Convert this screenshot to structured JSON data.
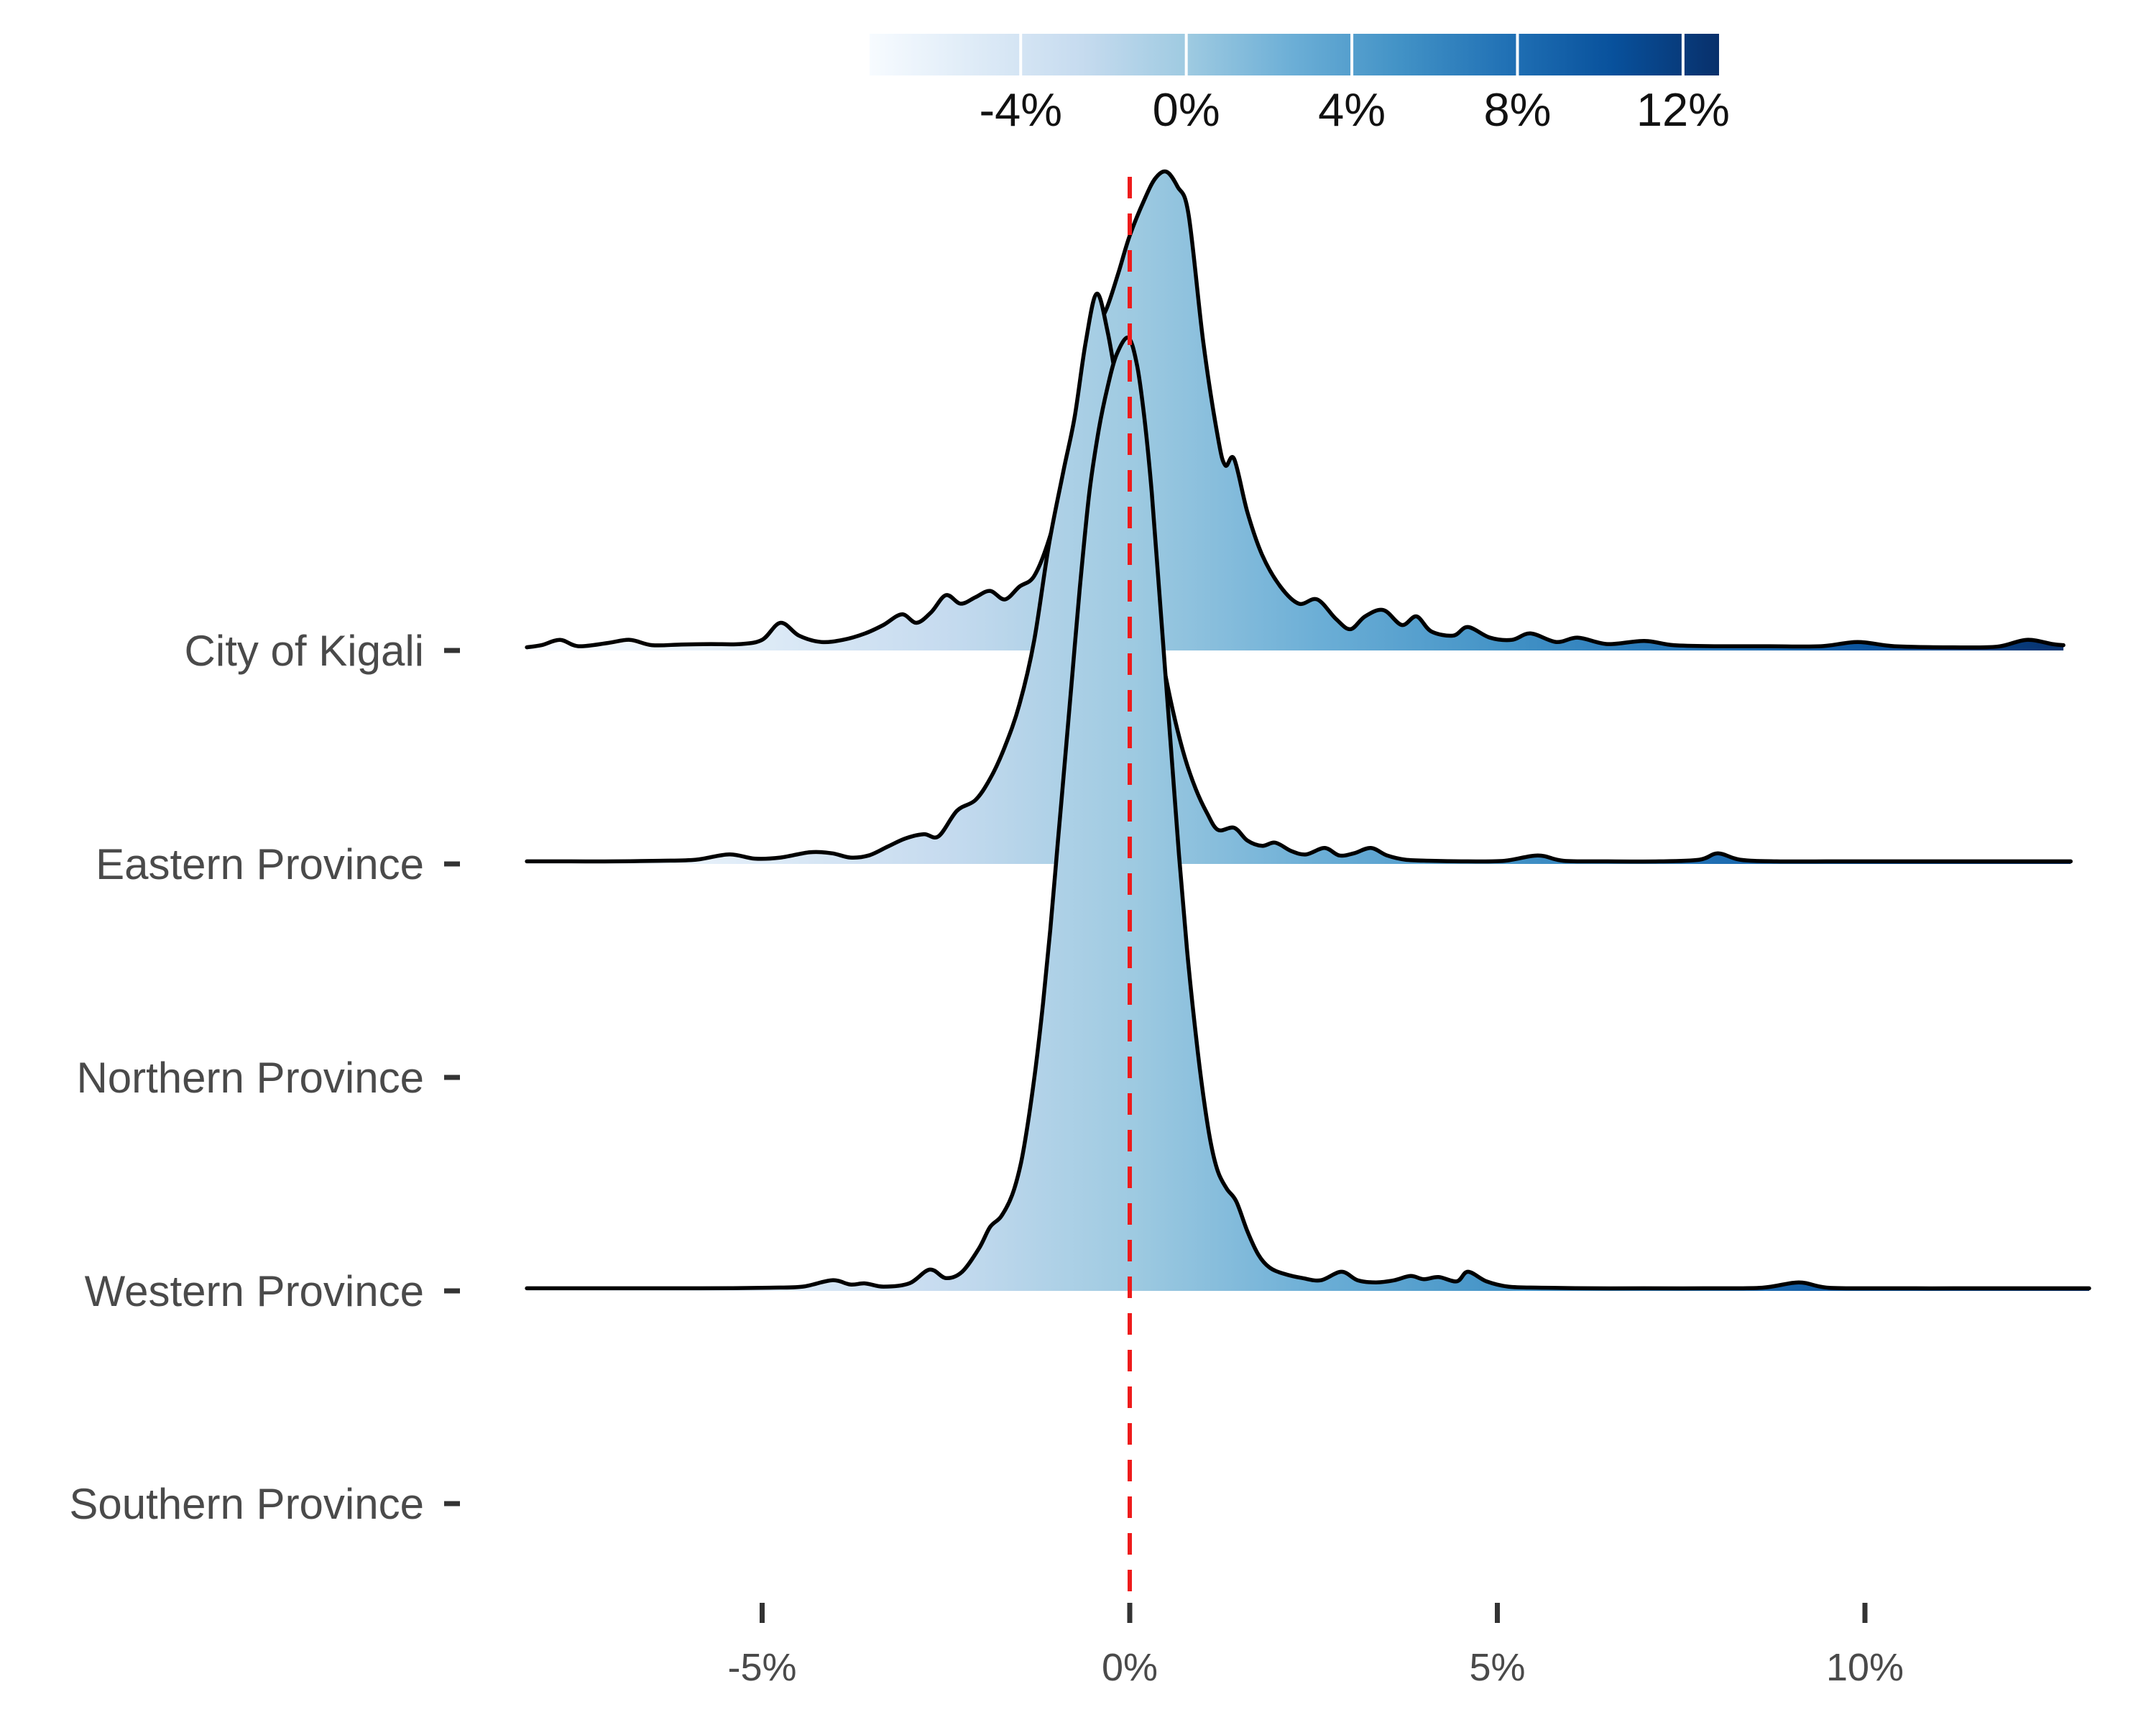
{
  "figure": {
    "background": "#ffffff",
    "outline_color": "#000000",
    "axis_text_color": "#4a4a4a",
    "legend_text_color": "#111111",
    "tick_color": "#333333"
  },
  "chart_data": {
    "type": "ridgeline",
    "title": "",
    "xlabel": "",
    "ylabel": "",
    "categories": [
      "City of Kigali",
      "Eastern Province",
      "Northern Province",
      "Western Province",
      "Southern Province"
    ],
    "x_axis": {
      "unit": "%",
      "ticks": [
        -5,
        0,
        5,
        10
      ],
      "tick_labels": [
        "-5%",
        "0%",
        "5%",
        "10%"
      ],
      "range_pct": [
        -8.2,
        13.1
      ]
    },
    "reference_line": {
      "value_pct": 0,
      "style": "dashed",
      "color": "#ee1b1b",
      "dash": [
        30,
        21
      ]
    },
    "colorbar": {
      "ticks": [
        -4,
        0,
        4,
        8,
        12
      ],
      "tick_labels": [
        "-4%",
        "0%",
        "4%",
        "8%",
        "12%"
      ],
      "range_pct": [
        -7.65,
        12.87
      ],
      "palette": [
        "#f7fbff",
        "#deebf7",
        "#c6dbef",
        "#9ecae1",
        "#6baed6",
        "#4292c6",
        "#2171b5",
        "#08519c",
        "#08306b"
      ],
      "tick_mark_color": "#ffffff"
    },
    "height_units": "fraction of row spacing above each category baseline",
    "series": [
      {
        "name": "City of Kigali",
        "has_density": true,
        "peak_pct": 0.5,
        "points": [
          [
            -8.2,
            0.015
          ],
          [
            -8.0,
            0.025
          ],
          [
            -7.75,
            0.05
          ],
          [
            -7.5,
            0.02
          ],
          [
            -7.1,
            0.035
          ],
          [
            -6.8,
            0.05
          ],
          [
            -6.5,
            0.025
          ],
          [
            -6.1,
            0.028
          ],
          [
            -5.7,
            0.03
          ],
          [
            -5.3,
            0.03
          ],
          [
            -5.0,
            0.05
          ],
          [
            -4.75,
            0.13
          ],
          [
            -4.5,
            0.07
          ],
          [
            -4.2,
            0.04
          ],
          [
            -3.9,
            0.05
          ],
          [
            -3.6,
            0.08
          ],
          [
            -3.35,
            0.12
          ],
          [
            -3.1,
            0.17
          ],
          [
            -2.9,
            0.13
          ],
          [
            -2.7,
            0.18
          ],
          [
            -2.5,
            0.26
          ],
          [
            -2.3,
            0.22
          ],
          [
            -2.1,
            0.25
          ],
          [
            -1.9,
            0.28
          ],
          [
            -1.7,
            0.24
          ],
          [
            -1.5,
            0.3
          ],
          [
            -1.3,
            0.35
          ],
          [
            -1.1,
            0.52
          ],
          [
            -0.9,
            0.78
          ],
          [
            -0.7,
            1.1
          ],
          [
            -0.5,
            1.45
          ],
          [
            -0.3,
            1.62
          ],
          [
            -0.15,
            1.78
          ],
          [
            0.0,
            1.95
          ],
          [
            0.2,
            2.12
          ],
          [
            0.35,
            2.22
          ],
          [
            0.5,
            2.25
          ],
          [
            0.65,
            2.18
          ],
          [
            0.8,
            2.05
          ],
          [
            1.0,
            1.45
          ],
          [
            1.2,
            1.0
          ],
          [
            1.3,
            0.87
          ],
          [
            1.42,
            0.9
          ],
          [
            1.6,
            0.65
          ],
          [
            1.8,
            0.45
          ],
          [
            2.05,
            0.3
          ],
          [
            2.3,
            0.22
          ],
          [
            2.55,
            0.24
          ],
          [
            2.8,
            0.15
          ],
          [
            3.0,
            0.1
          ],
          [
            3.2,
            0.16
          ],
          [
            3.45,
            0.19
          ],
          [
            3.7,
            0.12
          ],
          [
            3.9,
            0.16
          ],
          [
            4.1,
            0.09
          ],
          [
            4.4,
            0.07
          ],
          [
            4.6,
            0.11
          ],
          [
            4.9,
            0.06
          ],
          [
            5.2,
            0.05
          ],
          [
            5.45,
            0.08
          ],
          [
            5.8,
            0.04
          ],
          [
            6.1,
            0.06
          ],
          [
            6.5,
            0.03
          ],
          [
            7.0,
            0.045
          ],
          [
            7.4,
            0.025
          ],
          [
            8.0,
            0.02
          ],
          [
            8.7,
            0.02
          ],
          [
            9.4,
            0.02
          ],
          [
            9.9,
            0.04
          ],
          [
            10.4,
            0.02
          ],
          [
            11.2,
            0.015
          ],
          [
            11.8,
            0.018
          ],
          [
            12.2,
            0.05
          ],
          [
            12.55,
            0.03
          ],
          [
            12.7,
            0.025
          ]
        ]
      },
      {
        "name": "Eastern Province",
        "has_density": true,
        "peak_pct": -0.45,
        "points": [
          [
            -8.2,
            0.012
          ],
          [
            -7.6,
            0.012
          ],
          [
            -7.0,
            0.012
          ],
          [
            -6.4,
            0.015
          ],
          [
            -5.9,
            0.02
          ],
          [
            -5.45,
            0.045
          ],
          [
            -5.1,
            0.025
          ],
          [
            -4.75,
            0.03
          ],
          [
            -4.35,
            0.055
          ],
          [
            -4.05,
            0.05
          ],
          [
            -3.8,
            0.03
          ],
          [
            -3.55,
            0.04
          ],
          [
            -3.3,
            0.08
          ],
          [
            -3.05,
            0.12
          ],
          [
            -2.8,
            0.14
          ],
          [
            -2.6,
            0.13
          ],
          [
            -2.35,
            0.25
          ],
          [
            -2.1,
            0.3
          ],
          [
            -1.9,
            0.4
          ],
          [
            -1.7,
            0.55
          ],
          [
            -1.5,
            0.75
          ],
          [
            -1.3,
            1.05
          ],
          [
            -1.1,
            1.5
          ],
          [
            -0.9,
            1.85
          ],
          [
            -0.75,
            2.1
          ],
          [
            -0.6,
            2.45
          ],
          [
            -0.45,
            2.68
          ],
          [
            -0.3,
            2.5
          ],
          [
            -0.15,
            2.2
          ],
          [
            0.0,
            1.9
          ],
          [
            0.15,
            1.55
          ],
          [
            0.3,
            1.25
          ],
          [
            0.45,
            0.95
          ],
          [
            0.6,
            0.7
          ],
          [
            0.75,
            0.5
          ],
          [
            0.9,
            0.35
          ],
          [
            1.05,
            0.24
          ],
          [
            1.2,
            0.16
          ],
          [
            1.42,
            0.17
          ],
          [
            1.6,
            0.11
          ],
          [
            1.8,
            0.085
          ],
          [
            1.98,
            0.1
          ],
          [
            2.2,
            0.06
          ],
          [
            2.4,
            0.045
          ],
          [
            2.65,
            0.075
          ],
          [
            2.85,
            0.04
          ],
          [
            3.05,
            0.05
          ],
          [
            3.28,
            0.075
          ],
          [
            3.5,
            0.04
          ],
          [
            3.75,
            0.02
          ],
          [
            4.1,
            0.015
          ],
          [
            4.6,
            0.012
          ],
          [
            5.1,
            0.015
          ],
          [
            5.55,
            0.04
          ],
          [
            5.9,
            0.015
          ],
          [
            6.5,
            0.012
          ],
          [
            7.2,
            0.012
          ],
          [
            7.75,
            0.02
          ],
          [
            8.0,
            0.05
          ],
          [
            8.3,
            0.02
          ],
          [
            8.8,
            0.012
          ],
          [
            9.6,
            0.012
          ],
          [
            10.4,
            0.012
          ],
          [
            11.2,
            0.012
          ],
          [
            12.0,
            0.012
          ],
          [
            12.8,
            0.012
          ]
        ]
      },
      {
        "name": "Northern Province",
        "has_density": false,
        "points": []
      },
      {
        "name": "Western Province",
        "has_density": true,
        "peak_pct": 0.0,
        "points": [
          [
            -8.2,
            0.012
          ],
          [
            -7.5,
            0.012
          ],
          [
            -6.8,
            0.012
          ],
          [
            -6.1,
            0.012
          ],
          [
            -5.4,
            0.013
          ],
          [
            -4.9,
            0.015
          ],
          [
            -4.45,
            0.02
          ],
          [
            -4.05,
            0.05
          ],
          [
            -3.8,
            0.03
          ],
          [
            -3.6,
            0.035
          ],
          [
            -3.35,
            0.02
          ],
          [
            -3.0,
            0.035
          ],
          [
            -2.72,
            0.1
          ],
          [
            -2.5,
            0.06
          ],
          [
            -2.28,
            0.09
          ],
          [
            -2.05,
            0.2
          ],
          [
            -1.9,
            0.3
          ],
          [
            -1.75,
            0.35
          ],
          [
            -1.6,
            0.45
          ],
          [
            -1.48,
            0.6
          ],
          [
            -1.38,
            0.8
          ],
          [
            -1.28,
            1.05
          ],
          [
            -1.18,
            1.35
          ],
          [
            -1.08,
            1.7
          ],
          [
            -0.98,
            2.1
          ],
          [
            -0.88,
            2.5
          ],
          [
            -0.78,
            2.9
          ],
          [
            -0.68,
            3.3
          ],
          [
            -0.55,
            3.75
          ],
          [
            -0.42,
            4.05
          ],
          [
            -0.3,
            4.25
          ],
          [
            -0.18,
            4.4
          ],
          [
            -0.02,
            4.48
          ],
          [
            0.1,
            4.35
          ],
          [
            0.2,
            4.1
          ],
          [
            0.3,
            3.75
          ],
          [
            0.42,
            3.2
          ],
          [
            0.55,
            2.6
          ],
          [
            0.67,
            2.05
          ],
          [
            0.78,
            1.6
          ],
          [
            0.9,
            1.2
          ],
          [
            1.0,
            0.92
          ],
          [
            1.1,
            0.7
          ],
          [
            1.2,
            0.56
          ],
          [
            1.32,
            0.48
          ],
          [
            1.45,
            0.42
          ],
          [
            1.6,
            0.28
          ],
          [
            1.75,
            0.17
          ],
          [
            1.9,
            0.11
          ],
          [
            2.1,
            0.08
          ],
          [
            2.35,
            0.06
          ],
          [
            2.6,
            0.05
          ],
          [
            2.88,
            0.09
          ],
          [
            3.1,
            0.05
          ],
          [
            3.35,
            0.04
          ],
          [
            3.6,
            0.05
          ],
          [
            3.82,
            0.07
          ],
          [
            4.0,
            0.055
          ],
          [
            4.2,
            0.065
          ],
          [
            4.45,
            0.045
          ],
          [
            4.6,
            0.09
          ],
          [
            4.85,
            0.045
          ],
          [
            5.15,
            0.02
          ],
          [
            5.6,
            0.015
          ],
          [
            6.3,
            0.012
          ],
          [
            7.0,
            0.012
          ],
          [
            7.8,
            0.012
          ],
          [
            8.6,
            0.015
          ],
          [
            9.1,
            0.04
          ],
          [
            9.5,
            0.015
          ],
          [
            10.3,
            0.012
          ],
          [
            11.2,
            0.012
          ],
          [
            12.1,
            0.012
          ],
          [
            13.05,
            0.012
          ]
        ]
      },
      {
        "name": "Southern Province",
        "has_density": false,
        "points": []
      }
    ]
  }
}
